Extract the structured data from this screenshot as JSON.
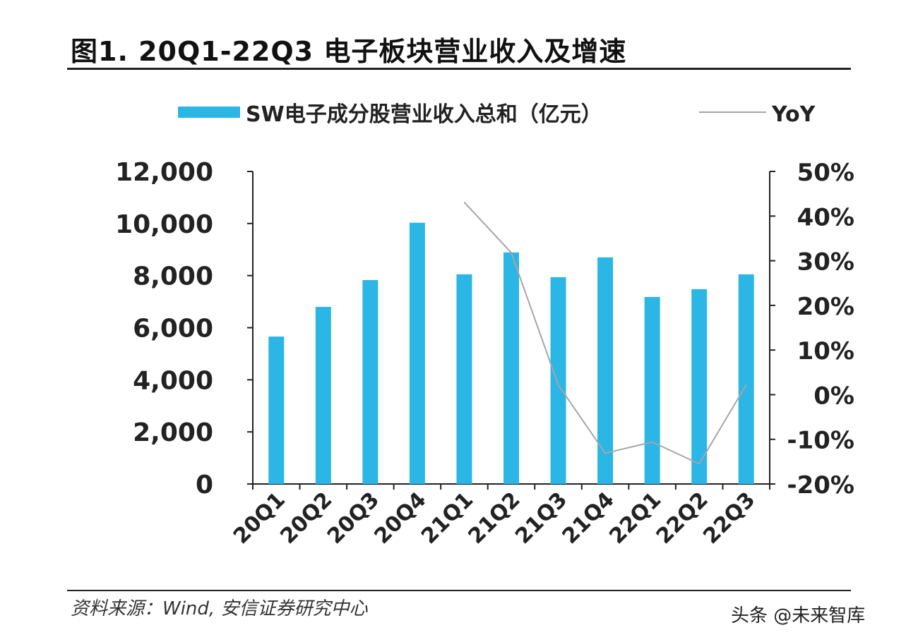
{
  "title": "图1. 20Q1-22Q3 电子板块营业收入及增速",
  "source": "资料来源：Wind, 安信证券研究中心",
  "watermark": "头条 @未来智库",
  "colors": {
    "bar": "#2bb6e6",
    "line": "#a6a6a6",
    "axis": "#222222"
  },
  "chart_data": {
    "type": "bar",
    "categories": [
      "20Q1",
      "20Q2",
      "20Q3",
      "20Q4",
      "21Q1",
      "21Q2",
      "21Q3",
      "21Q4",
      "22Q1",
      "22Q2",
      "22Q3"
    ],
    "series": [
      {
        "name": "SW电子成分股营业收入总和（亿元）",
        "type": "bar",
        "axis": "left",
        "values": [
          5660,
          6800,
          7830,
          10030,
          8050,
          8890,
          7940,
          8700,
          7180,
          7480,
          8050
        ]
      },
      {
        "name": "YoY",
        "type": "line",
        "axis": "right",
        "values": [
          null,
          null,
          null,
          null,
          43.1,
          31.8,
          2.2,
          -13.1,
          -10.6,
          -15.5,
          2.2
        ]
      }
    ],
    "ylim": [
      0,
      12000
    ],
    "y_ticks": [
      "0",
      "2,000",
      "4,000",
      "6,000",
      "8,000",
      "10,000",
      "12,000"
    ],
    "y2lim": [
      -20,
      50
    ],
    "y2_ticks": [
      "-20%",
      "-10%",
      "0%",
      "10%",
      "20%",
      "30%",
      "40%",
      "50%"
    ],
    "legend": "top"
  }
}
